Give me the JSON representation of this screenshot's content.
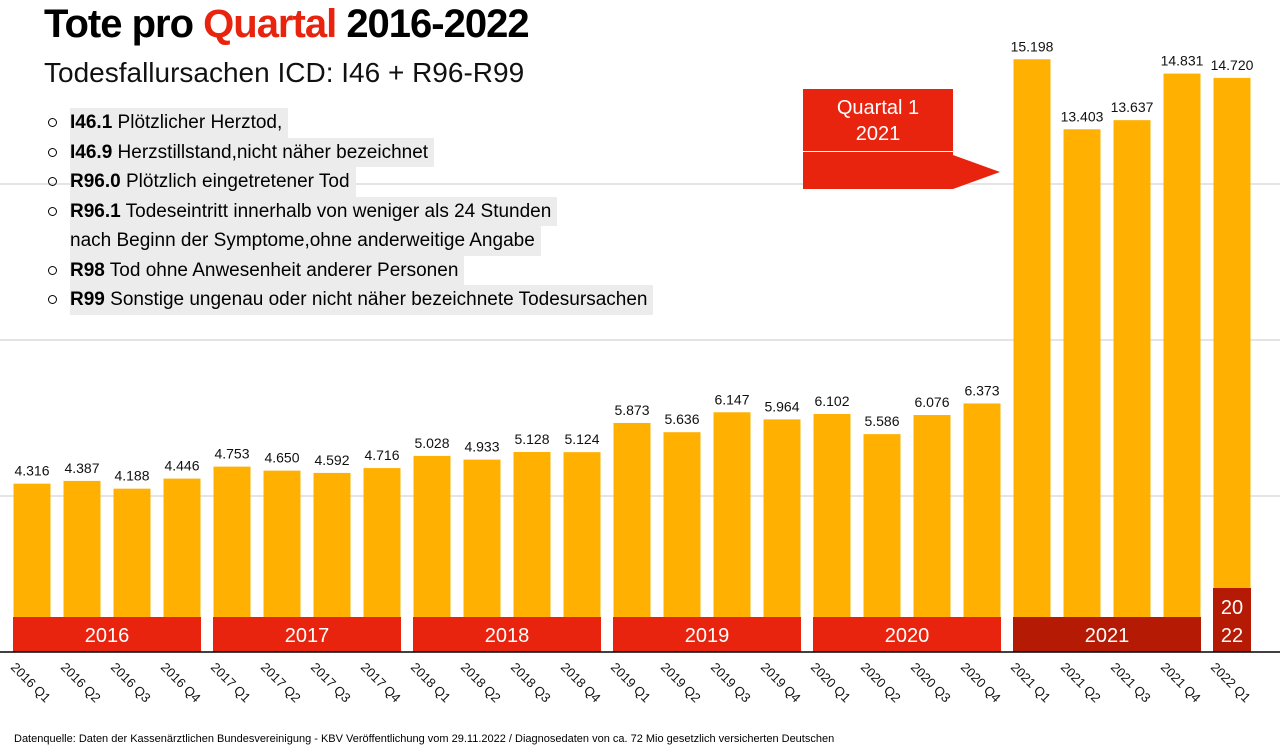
{
  "chart_data": {
    "type": "bar",
    "title_parts": [
      "Tote pro",
      "Quartal",
      "2016-2022"
    ],
    "subtitle": "Todesfallursachen ICD: I46 + R96-R99",
    "items": [
      {
        "code": "I46.1",
        "lines": [
          "Plötzlicher Herztod,"
        ]
      },
      {
        "code": "I46.9",
        "lines": [
          "Herzstillstand,nicht näher bezeichnet"
        ]
      },
      {
        "code": "R96.0",
        "lines": [
          "Plötzlich eingetretener Tod"
        ]
      },
      {
        "code": "R96.1",
        "lines": [
          "Todeseintritt innerhalb von weniger als 24 Stunden",
          "nach Beginn der Symptome,ohne anderweitige Angabe"
        ]
      },
      {
        "code": "R98",
        "lines": [
          "Tod ohne Anwesenheit anderer Personen"
        ]
      },
      {
        "code": "R99",
        "lines": [
          "Sonstige ungenau oder nicht näher bezeichnete Todesursachen"
        ]
      }
    ],
    "annotation": [
      "Quartal 1",
      "2021"
    ],
    "categories": [
      "2016 Q1",
      "2016 Q2",
      "2016 Q3",
      "2016 Q4",
      "2017 Q1",
      "2017 Q2",
      "2017 Q3",
      "2017 Q4",
      "2018 Q1",
      "2018 Q2",
      "2018 Q3",
      "2018 Q4",
      "2019 Q1",
      "2019 Q2",
      "2019 Q3",
      "2019 Q4",
      "2020 Q1",
      "2020 Q2",
      "2020 Q3",
      "2020 Q4",
      "2021 Q1",
      "2021 Q2",
      "2021 Q3",
      "2021 Q4",
      "2022 Q1"
    ],
    "values": [
      4316,
      4387,
      4188,
      4446,
      4753,
      4650,
      4592,
      4716,
      5028,
      4933,
      5128,
      5124,
      5873,
      5636,
      6147,
      5964,
      6102,
      5586,
      6076,
      6373,
      15198,
      13403,
      13637,
      14831,
      14720
    ],
    "value_labels": [
      "4.316",
      "4.387",
      "4.188",
      "4.446",
      "4.753",
      "4.650",
      "4.592",
      "4.716",
      "5.028",
      "4.933",
      "5.128",
      "5.124",
      "5.873",
      "5.636",
      "6.147",
      "5.964",
      "6.102",
      "5.586",
      "6.076",
      "6.373",
      "15.198",
      "13.403",
      "13.637",
      "14.831",
      "14.720"
    ],
    "color": "#ffb000",
    "year_bands": [
      [
        "2016"
      ],
      [
        "2017"
      ],
      [
        "2018"
      ],
      [
        "2019"
      ],
      [
        "2020"
      ],
      [
        "2021"
      ],
      [
        "20",
        "22"
      ]
    ],
    "band_colors": [
      "#e8240f",
      "#e8240f",
      "#e8240f",
      "#e8240f",
      "#e8240f",
      "#b51a05",
      "#b51a05"
    ],
    "ylim": [
      0,
      16000
    ],
    "yticks": [
      4000,
      8000,
      12000
    ],
    "grid": true,
    "source": "Datenquelle: Daten der Kassenärztlichen Bundesvereinigung - KBV Veröffentlichung vom 29.11.2022 / Diagnosedaten von ca. 72 Mio gesetzlich versicherten Deutschen"
  }
}
